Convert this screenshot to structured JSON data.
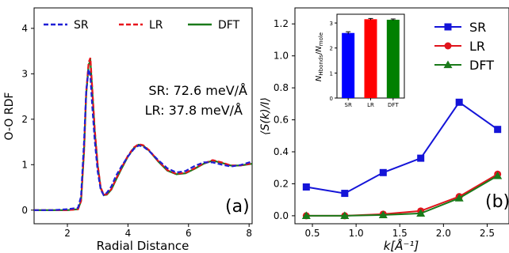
{
  "chart_data": [
    {
      "type": "line",
      "panel_label": "(a)",
      "title": "",
      "xlabel": "Radial Distance",
      "ylabel": "O-O RDF",
      "xlim": [
        0.9,
        8.1
      ],
      "ylim": [
        -0.3,
        4.45
      ],
      "xticks": [
        "2",
        "4",
        "6",
        "8"
      ],
      "yticks": [
        "0",
        "1",
        "2",
        "3",
        "4"
      ],
      "legend_position": "top",
      "annotations": [
        "SR: 72.6 meV/Å",
        "LR: 37.8 meV/Å"
      ],
      "series": [
        {
          "name": "SR",
          "color": "#1f1fd6",
          "style": "dashed",
          "x": [
            0.9,
            1.5,
            2.0,
            2.35,
            2.45,
            2.55,
            2.62,
            2.7,
            2.76,
            2.82,
            2.9,
            3.0,
            3.1,
            3.2,
            3.3,
            3.45,
            3.6,
            3.8,
            4.0,
            4.2,
            4.35,
            4.5,
            4.7,
            5.0,
            5.3,
            5.6,
            5.9,
            6.2,
            6.5,
            6.8,
            7.1,
            7.4,
            7.7,
            8.1
          ],
          "y": [
            0.0,
            0.0,
            0.02,
            0.05,
            0.3,
            1.5,
            2.6,
            3.1,
            2.95,
            2.3,
            1.55,
            0.85,
            0.45,
            0.33,
            0.38,
            0.52,
            0.75,
            0.98,
            1.18,
            1.35,
            1.42,
            1.4,
            1.3,
            1.1,
            0.92,
            0.83,
            0.86,
            0.97,
            1.05,
            1.05,
            1.0,
            0.96,
            0.99,
            1.07
          ]
        },
        {
          "name": "LR",
          "color": "#e8141c",
          "style": "dashed",
          "x": [
            0.9,
            1.5,
            2.0,
            2.35,
            2.45,
            2.55,
            2.62,
            2.7,
            2.76,
            2.82,
            2.9,
            3.0,
            3.1,
            3.2,
            3.3,
            3.45,
            3.6,
            3.8,
            4.0,
            4.2,
            4.35,
            4.5,
            4.7,
            5.0,
            5.3,
            5.6,
            5.9,
            6.2,
            6.5,
            6.8,
            7.1,
            7.4,
            7.7,
            8.1
          ],
          "y": [
            0.0,
            0.0,
            0.0,
            0.02,
            0.2,
            1.3,
            2.6,
            3.25,
            3.35,
            2.7,
            1.8,
            1.0,
            0.5,
            0.34,
            0.35,
            0.46,
            0.68,
            0.95,
            1.2,
            1.38,
            1.45,
            1.43,
            1.32,
            1.08,
            0.88,
            0.8,
            0.82,
            0.92,
            1.03,
            1.1,
            1.05,
            0.98,
            0.98,
            1.03
          ]
        },
        {
          "name": "DFT",
          "color": "#1a7a1a",
          "style": "solid",
          "x": [
            0.9,
            1.5,
            2.0,
            2.35,
            2.45,
            2.55,
            2.62,
            2.7,
            2.76,
            2.82,
            2.9,
            3.0,
            3.1,
            3.2,
            3.3,
            3.45,
            3.6,
            3.8,
            4.0,
            4.2,
            4.35,
            4.5,
            4.7,
            5.0,
            5.3,
            5.6,
            5.9,
            6.2,
            6.5,
            6.8,
            7.1,
            7.4,
            7.7,
            8.1
          ],
          "y": [
            0.0,
            0.0,
            0.0,
            0.02,
            0.2,
            1.3,
            2.55,
            3.2,
            3.28,
            2.65,
            1.75,
            0.98,
            0.48,
            0.33,
            0.34,
            0.45,
            0.66,
            0.93,
            1.18,
            1.37,
            1.44,
            1.42,
            1.31,
            1.07,
            0.87,
            0.79,
            0.81,
            0.91,
            1.02,
            1.09,
            1.04,
            0.98,
            0.98,
            1.02
          ]
        }
      ]
    },
    {
      "type": "line",
      "panel_label": "(b)",
      "title": "",
      "xlabel": "k[Å⁻¹]",
      "ylabel": "⟨S(k)/I⟩",
      "xlim": [
        0.3,
        2.75
      ],
      "ylim": [
        -0.05,
        1.3
      ],
      "xticks": [
        "0.5",
        "1.0",
        "1.5",
        "2.0",
        "2.5"
      ],
      "yticks": [
        "0.0",
        "0.2",
        "0.4",
        "0.6",
        "0.8",
        "1.0",
        "1.2"
      ],
      "legend_position": "right",
      "series": [
        {
          "name": "SR",
          "color": "#1414d8",
          "marker": "square",
          "x": [
            0.43,
            0.87,
            1.31,
            1.74,
            2.18,
            2.62
          ],
          "y": [
            0.18,
            0.14,
            0.27,
            0.36,
            0.71,
            0.54
          ]
        },
        {
          "name": "LR",
          "color": "#e0141c",
          "marker": "circle",
          "x": [
            0.43,
            0.87,
            1.31,
            1.74,
            2.18,
            2.62
          ],
          "y": [
            0.0,
            0.0,
            0.01,
            0.03,
            0.12,
            0.26
          ]
        },
        {
          "name": "DFT",
          "color": "#1a7a1a",
          "marker": "triangle",
          "x": [
            0.43,
            0.87,
            1.31,
            1.74,
            2.18,
            2.62
          ],
          "y": [
            0.0,
            0.0,
            0.005,
            0.015,
            0.11,
            0.25
          ]
        }
      ],
      "inset": {
        "type": "bar",
        "ylabel": "N_Hbonds/N_mole",
        "ylim": [
          0,
          3.35
        ],
        "yticks": [
          "0",
          "1",
          "2",
          "3"
        ],
        "categories": [
          "SR",
          "LR",
          "DFT"
        ],
        "values": [
          2.6,
          3.15,
          3.13
        ],
        "errors": [
          0.05,
          0.03,
          0.03
        ],
        "colors": [
          "#0000ff",
          "#ff0000",
          "#008000"
        ]
      }
    }
  ]
}
